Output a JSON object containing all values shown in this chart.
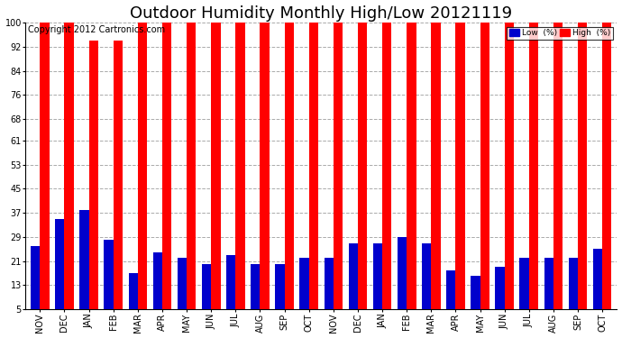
{
  "title": "Outdoor Humidity Monthly High/Low 20121119",
  "copyright": "Copyright 2012 Cartronics.com",
  "categories": [
    "NOV",
    "DEC",
    "JAN",
    "FEB",
    "MAR",
    "APR",
    "MAY",
    "JUN",
    "JUL",
    "AUG",
    "SEP",
    "OCT",
    "NOV",
    "DEC",
    "JAN",
    "FEB",
    "MAR",
    "APR",
    "MAY",
    "JUN",
    "JUL",
    "AUG",
    "SEP",
    "OCT"
  ],
  "high_values": [
    100,
    100,
    94,
    94,
    100,
    100,
    100,
    100,
    100,
    100,
    100,
    100,
    100,
    100,
    100,
    100,
    100,
    100,
    100,
    100,
    100,
    100,
    100,
    100
  ],
  "low_values": [
    26,
    35,
    38,
    28,
    17,
    24,
    22,
    20,
    23,
    20,
    20,
    22,
    22,
    27,
    27,
    29,
    27,
    18,
    16,
    19,
    22,
    22,
    22,
    25
  ],
  "bar_color_high": "#FF0000",
  "bar_color_low": "#0000CC",
  "background_color": "#FFFFFF",
  "plot_bg_color": "#FFFFFF",
  "yticks": [
    5,
    13,
    21,
    29,
    37,
    45,
    53,
    61,
    68,
    76,
    84,
    92,
    100
  ],
  "ylim": [
    5,
    100
  ],
  "ymin": 5,
  "grid_color": "#AAAAAA",
  "legend_low_label": "Low  (%)",
  "legend_high_label": "High  (%)",
  "title_fontsize": 13,
  "copyright_fontsize": 7,
  "tick_fontsize": 7,
  "bar_width": 0.38
}
